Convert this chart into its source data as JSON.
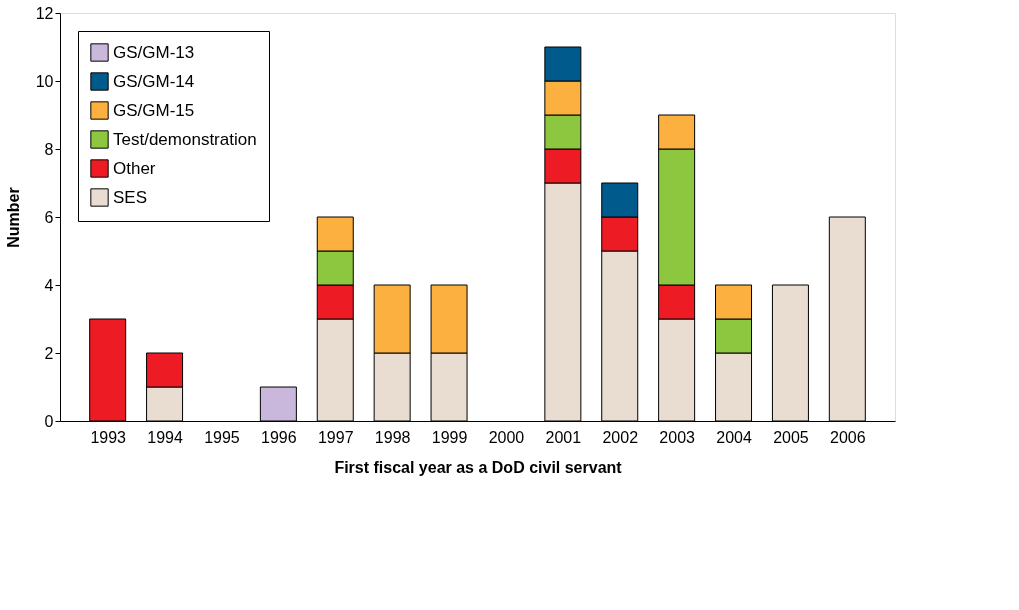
{
  "chart_data": {
    "type": "bar",
    "stacked": true,
    "xlabel": "First fiscal year as a DoD civil servant",
    "ylabel": "Number",
    "categories": [
      "1993",
      "1994",
      "1995",
      "1996",
      "1997",
      "1998",
      "1999",
      "2000",
      "2001",
      "2002",
      "2003",
      "2004",
      "2005",
      "2006"
    ],
    "series": [
      {
        "name": "SES",
        "color": "#e8ddd0",
        "values": [
          null,
          1,
          null,
          null,
          3,
          2,
          2,
          null,
          7,
          5,
          3,
          2,
          4,
          6
        ]
      },
      {
        "name": "Other",
        "color": "#ed1c24",
        "values": [
          3,
          1,
          null,
          null,
          1,
          null,
          null,
          null,
          1,
          1,
          1,
          null,
          null,
          null
        ]
      },
      {
        "name": "Test/demonstration",
        "color": "#8dc63f",
        "values": [
          null,
          null,
          null,
          null,
          1,
          null,
          null,
          null,
          1,
          null,
          4,
          1,
          null,
          null
        ]
      },
      {
        "name": "GS/GM-15",
        "color": "#fbb040",
        "values": [
          null,
          null,
          null,
          null,
          1,
          2,
          2,
          null,
          1,
          null,
          1,
          1,
          null,
          null
        ]
      },
      {
        "name": "GS/GM-14",
        "color": "#005b8c",
        "values": [
          null,
          null,
          null,
          null,
          null,
          null,
          null,
          null,
          1,
          1,
          null,
          null,
          null,
          null
        ]
      },
      {
        "name": "GS/GM-13",
        "color": "#c9b8dc",
        "values": [
          null,
          null,
          null,
          1,
          null,
          null,
          null,
          null,
          null,
          null,
          null,
          null,
          null,
          null
        ]
      }
    ],
    "ylim": [
      0,
      12
    ],
    "yticks": [
      0,
      2,
      4,
      6,
      8,
      10,
      12
    ],
    "grid": false,
    "legend": "top left"
  }
}
